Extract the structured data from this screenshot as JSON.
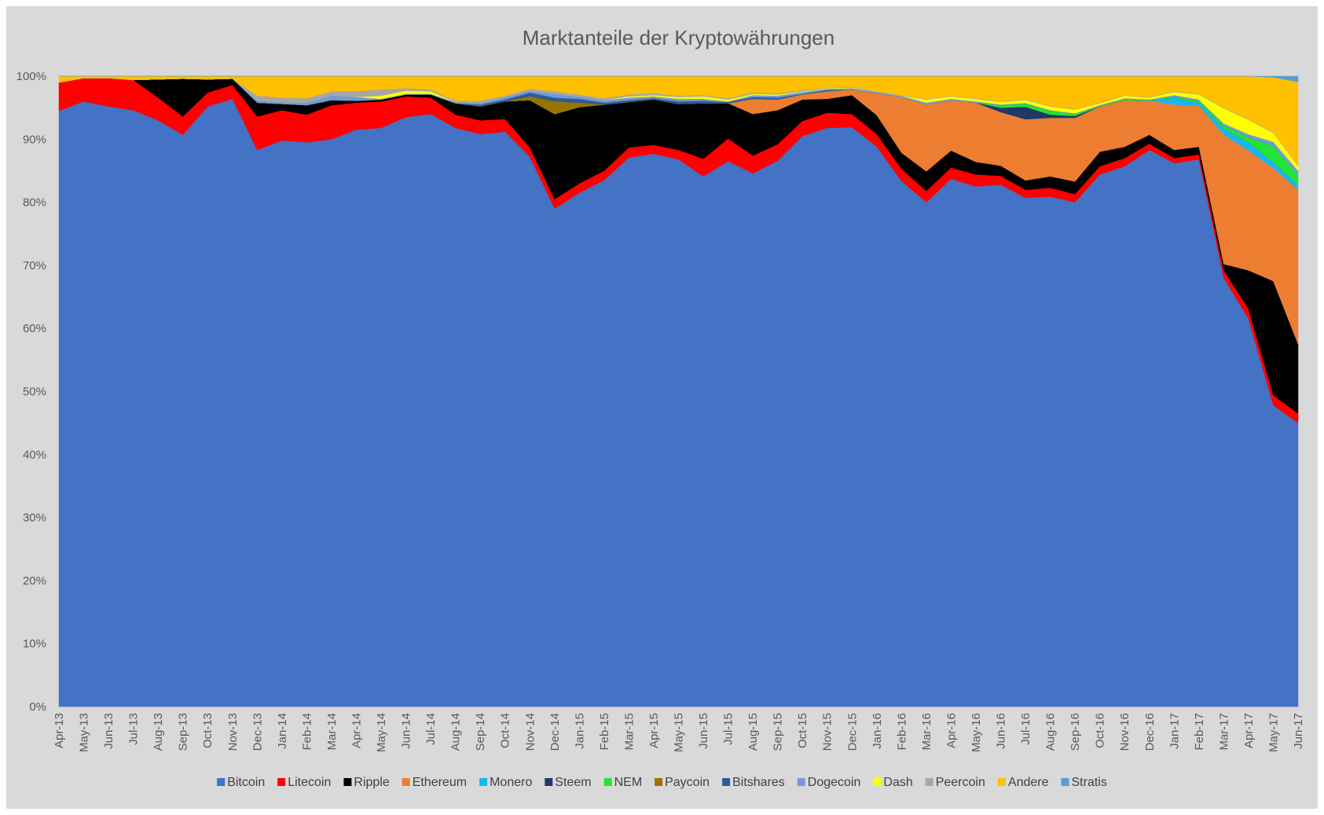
{
  "chart_data": {
    "type": "area",
    "stacked": true,
    "normalized": true,
    "title": "Marktanteile der Kryptowährungen",
    "xlabel": "",
    "ylabel": "",
    "ylim": [
      0,
      100
    ],
    "y_ticks": [
      "0%",
      "10%",
      "20%",
      "30%",
      "40%",
      "50%",
      "60%",
      "70%",
      "80%",
      "90%",
      "100%"
    ],
    "grid": false,
    "legend_position": "bottom",
    "background_color": "#d9d9d9",
    "categories": [
      "Apr-13",
      "May-13",
      "Jun-13",
      "Jul-13",
      "Aug-13",
      "Sep-13",
      "Oct-13",
      "Nov-13",
      "Dec-13",
      "Jan-14",
      "Feb-14",
      "Mar-14",
      "Apr-14",
      "May-14",
      "Jun-14",
      "Jul-14",
      "Aug-14",
      "Sep-14",
      "Oct-14",
      "Nov-14",
      "Dec-14",
      "Jan-15",
      "Feb-15",
      "Mar-15",
      "Apr-15",
      "May-15",
      "Jun-15",
      "Jul-15",
      "Aug-15",
      "Sep-15",
      "Oct-15",
      "Nov-15",
      "Dec-15",
      "Jan-16",
      "Feb-16",
      "Mar-16",
      "Apr-16",
      "May-16",
      "Jun-16",
      "Jul-16",
      "Aug-16",
      "Sep-16",
      "Oct-16",
      "Nov-16",
      "Dec-16",
      "Jan-17",
      "Feb-17",
      "Mar-17",
      "Apr-17",
      "May-17",
      "Jun-17"
    ],
    "series": [
      {
        "name": "Bitcoin",
        "color": "#4472c4",
        "values": [
          94.5,
          96.0,
          95.2,
          94.6,
          93.0,
          90.7,
          95.2,
          96.4,
          88.3,
          89.8,
          89.5,
          90.0,
          91.5,
          91.8,
          93.5,
          94.0,
          91.8,
          90.8,
          91.2,
          87.2,
          79.0,
          81.5,
          83.5,
          87.1,
          87.7,
          86.8,
          84.1,
          86.5,
          84.6,
          86.6,
          90.5,
          91.8,
          91.9,
          88.8,
          85.0,
          80.0,
          83.7,
          82.5,
          82.8,
          81.5,
          80.9,
          80.0,
          84.5,
          85.7,
          88.3,
          86.2,
          86.8,
          68.0,
          61.5,
          47.8,
          45.0
        ]
      },
      {
        "name": "Litecoin",
        "color": "#ff0000",
        "values": [
          4.5,
          3.7,
          4.5,
          4.8,
          3.6,
          2.9,
          2.2,
          2.2,
          5.3,
          4.8,
          4.4,
          5.4,
          4.3,
          4.2,
          3.3,
          2.6,
          2.1,
          2.2,
          2.0,
          1.5,
          1.5,
          1.5,
          1.5,
          1.6,
          1.4,
          1.5,
          2.8,
          3.6,
          2.8,
          2.6,
          2.4,
          2.4,
          2.1,
          2.0,
          2.0,
          1.8,
          1.8,
          1.9,
          1.4,
          1.3,
          1.4,
          1.3,
          1.3,
          1.3,
          1.0,
          0.8,
          0.8,
          1.2,
          1.6,
          1.6,
          1.5
        ]
      },
      {
        "name": "Ripple",
        "color": "#000000",
        "values": [
          0.0,
          0.0,
          0.0,
          0.0,
          2.9,
          6.0,
          2.1,
          1.0,
          2.2,
          1.0,
          1.5,
          0.8,
          0.3,
          0.3,
          0.3,
          0.5,
          1.8,
          2.2,
          2.8,
          7.5,
          13.5,
          12.1,
          10.5,
          7.2,
          7.2,
          7.3,
          8.8,
          5.6,
          6.6,
          5.4,
          3.4,
          2.2,
          3.0,
          3.0,
          2.6,
          3.1,
          2.7,
          2.0,
          1.6,
          1.5,
          1.8,
          2.0,
          2.3,
          1.8,
          1.4,
          1.3,
          1.2,
          1.0,
          6.1,
          18.1,
          11.0
        ]
      },
      {
        "name": "Ethereum",
        "color": "#ed7d31",
        "values": [
          0,
          0,
          0,
          0,
          0,
          0,
          0,
          0,
          0,
          0,
          0,
          0,
          0,
          0,
          0,
          0,
          0,
          0,
          0,
          0,
          0,
          0,
          0,
          0,
          0,
          0,
          0,
          0,
          2.4,
          1.7,
          0.8,
          1.2,
          0.9,
          3.5,
          9.0,
          10.6,
          8.0,
          9.4,
          8.5,
          9.8,
          9.3,
          10.1,
          7.2,
          7.4,
          5.4,
          7.2,
          6.5,
          20.5,
          19.0,
          17.9,
          24.5
        ]
      },
      {
        "name": "Monero",
        "color": "#1bb6f0",
        "values": [
          0,
          0,
          0,
          0,
          0,
          0,
          0,
          0,
          0,
          0,
          0,
          0,
          0,
          0,
          0,
          0,
          0,
          0,
          0,
          0,
          0,
          0,
          0,
          0,
          0,
          0,
          0,
          0,
          0,
          0,
          0,
          0,
          0,
          0,
          0,
          0,
          0,
          0,
          0,
          0,
          0,
          0,
          0,
          0,
          0,
          1.1,
          0.5,
          1.0,
          1.3,
          1.0,
          0.7
        ]
      },
      {
        "name": "Steem",
        "color": "#203864",
        "values": [
          0,
          0,
          0,
          0,
          0,
          0,
          0,
          0,
          0,
          0,
          0,
          0,
          0,
          0,
          0,
          0,
          0,
          0,
          0,
          0,
          0,
          0,
          0,
          0,
          0,
          0,
          0,
          0,
          0,
          0,
          0,
          0,
          0,
          0,
          0,
          0,
          0,
          0,
          0.7,
          2.0,
          0.5,
          0.3,
          0,
          0,
          0,
          0,
          0,
          0,
          0,
          0,
          0
        ]
      },
      {
        "name": "NEM",
        "color": "#21e534",
        "values": [
          0,
          0,
          0,
          0,
          0,
          0,
          0,
          0,
          0,
          0,
          0,
          0,
          0,
          0,
          0,
          0,
          0,
          0,
          0,
          0,
          0,
          0,
          0,
          0,
          0,
          0,
          0,
          0,
          0,
          0,
          0,
          0,
          0,
          0,
          0,
          0,
          0,
          0,
          0.4,
          0.5,
          0.6,
          0.3,
          0.1,
          0.2,
          0.1,
          0.2,
          0.3,
          0.5,
          0.8,
          2.5,
          1.7
        ]
      },
      {
        "name": "Paycoin",
        "color": "#997300",
        "values": [
          0,
          0,
          0,
          0,
          0,
          0,
          0,
          0,
          0,
          0,
          0,
          0,
          0,
          0,
          0,
          0,
          0,
          0,
          0,
          0.6,
          2.0,
          0.7,
          0,
          0,
          0,
          0,
          0,
          0,
          0,
          0,
          0,
          0,
          0,
          0,
          0,
          0,
          0,
          0,
          0,
          0,
          0,
          0,
          0,
          0,
          0,
          0,
          0,
          0,
          0,
          0,
          0
        ]
      },
      {
        "name": "Bitshares",
        "color": "#2e5b96",
        "values": [
          0,
          0,
          0,
          0,
          0,
          0,
          0,
          0,
          0,
          0,
          0,
          0,
          0,
          0,
          0,
          0,
          0,
          0.3,
          0.3,
          0.6,
          0.6,
          0.6,
          0.3,
          0.3,
          0.2,
          0.4,
          0.4,
          0.2,
          0.3,
          0.3,
          0.1,
          0.2,
          0,
          0,
          0,
          0,
          0,
          0,
          0,
          0,
          0,
          0,
          0,
          0,
          0,
          0,
          0,
          0,
          0,
          0,
          0
        ]
      },
      {
        "name": "Dogecoin",
        "color": "#7399d8",
        "values": [
          0,
          0,
          0,
          0,
          0,
          0,
          0,
          0,
          0.4,
          0.3,
          0.4,
          0.8,
          0.6,
          0.1,
          0.1,
          0.1,
          0.2,
          0.3,
          0.4,
          0.3,
          0.6,
          0.4,
          0.4,
          0.4,
          0.3,
          0.4,
          0.3,
          0.1,
          0.3,
          0.3,
          0.3,
          0.2,
          0.2,
          0.2,
          0.2,
          0.3,
          0.2,
          0.2,
          0.1,
          0.1,
          0.1,
          0.1,
          0.1,
          0.1,
          0.1,
          0.2,
          0.2,
          0.3,
          0.5,
          0.7,
          0.6
        ]
      },
      {
        "name": "Dash",
        "color": "#ffff00",
        "values": [
          0,
          0,
          0,
          0,
          0,
          0,
          0,
          0,
          0,
          0,
          0,
          0,
          0,
          0.5,
          0.5,
          0.4,
          0,
          0,
          0,
          0,
          0,
          0,
          0,
          0.2,
          0.2,
          0.3,
          0.4,
          0.3,
          0.2,
          0.2,
          0.1,
          0.1,
          0.1,
          0,
          0,
          0.5,
          0.4,
          0.4,
          0.4,
          0.5,
          0.6,
          0.6,
          0.3,
          0.4,
          0.3,
          0.5,
          0.8,
          2.4,
          2.3,
          1.4,
          0.8
        ]
      },
      {
        "name": "Peercoin",
        "color": "#a6a6a6",
        "values": [
          0,
          0,
          0,
          0,
          0,
          0,
          0,
          0,
          0.7,
          0.7,
          0.7,
          0.6,
          0.9,
          1.0,
          0.4,
          0.3,
          0.2,
          0.3,
          0.2,
          0.3,
          0.4,
          0.3,
          0.3,
          0.3,
          0.3,
          0.2,
          0.2,
          0.2,
          0.2,
          0.2,
          0.2,
          0.1,
          0.1,
          0.1,
          0.1,
          0.1,
          0.1,
          0.1,
          0.1,
          0.1,
          0.1,
          0.1,
          0.1,
          0.1,
          0.1,
          0.1,
          0.1,
          0.1,
          0.1,
          0.1,
          0.1
        ]
      },
      {
        "name": "Andere",
        "color": "#ffc000",
        "values": [
          1.0,
          0.3,
          0.3,
          0.6,
          0.5,
          0.4,
          0.5,
          0.4,
          3.1,
          3.4,
          3.5,
          2.4,
          2.4,
          2.1,
          1.9,
          2.1,
          3.9,
          3.9,
          3.1,
          2.0,
          2.4,
          2.9,
          3.5,
          2.9,
          2.7,
          3.1,
          3.0,
          3.5,
          2.6,
          2.7,
          2.2,
          1.8,
          1.7,
          2.4,
          3.1,
          3.6,
          3.1,
          3.5,
          4.0,
          3.7,
          4.7,
          5.2,
          4.2,
          3.0,
          3.3,
          2.4,
          2.8,
          5.0,
          6.8,
          8.7,
          13.2
        ]
      },
      {
        "name": "Stratis",
        "color": "#5b9bd5",
        "values": [
          0,
          0,
          0,
          0,
          0,
          0,
          0,
          0,
          0,
          0,
          0,
          0,
          0,
          0,
          0,
          0,
          0,
          0,
          0,
          0,
          0,
          0,
          0,
          0,
          0,
          0,
          0,
          0,
          0,
          0,
          0,
          0,
          0,
          0,
          0,
          0,
          0,
          0,
          0,
          0,
          0,
          0,
          0,
          0,
          0,
          0,
          0,
          0,
          0,
          0.2,
          0.9
        ]
      }
    ]
  }
}
